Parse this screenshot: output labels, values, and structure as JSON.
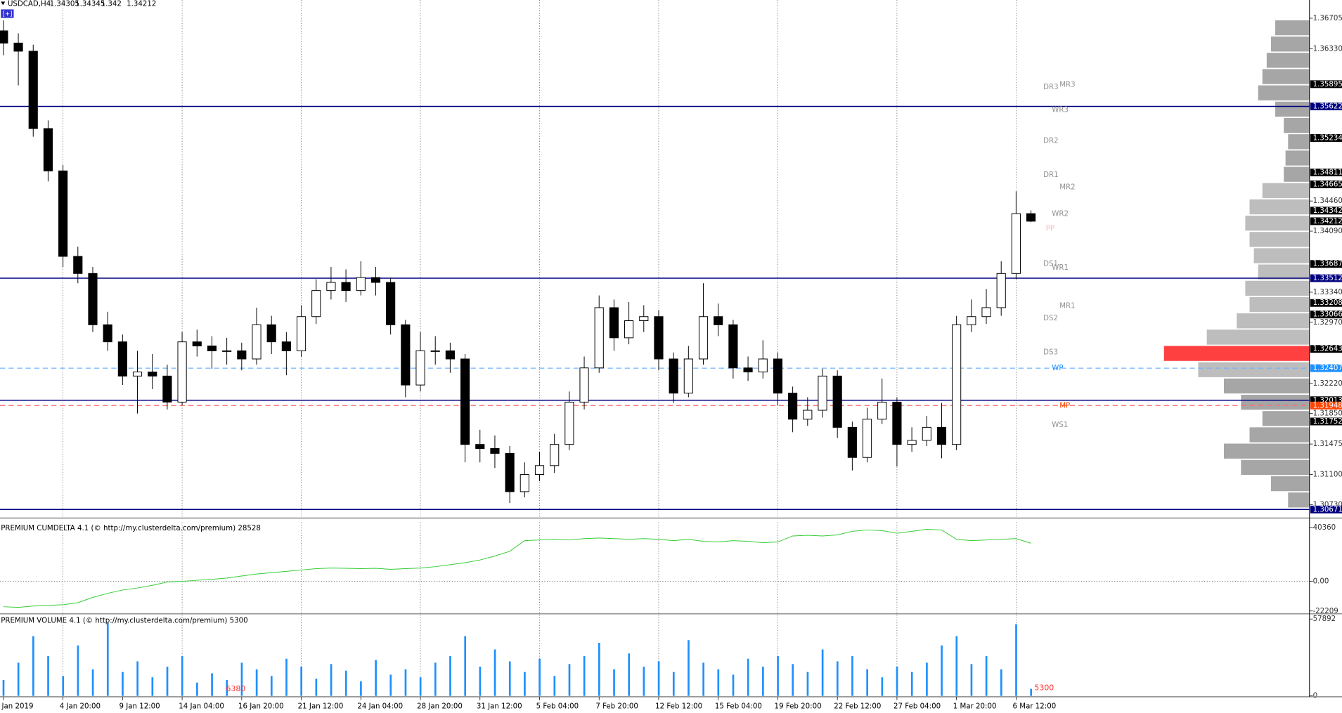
{
  "chart_data": [
    {
      "type": "candlestick",
      "title": "USDCAD,H4",
      "categories": [
        "2 Jan 2019",
        null,
        null,
        null,
        "4 Jan 20:00",
        null,
        null,
        null,
        "9 Jan 12:00",
        null,
        null,
        null,
        "14 Jan 04:00",
        null,
        null,
        null,
        "16 Jan 20:00",
        null,
        null,
        null,
        "21 Jan 12:00",
        null,
        null,
        null,
        "24 Jan 04:00",
        null,
        null,
        null,
        "28 Jan 20:00",
        null,
        null,
        null,
        "31 Jan 12:00",
        null,
        null,
        null,
        "5 Feb 04:00",
        null,
        null,
        null,
        "7 Feb 20:00",
        null,
        null,
        null,
        "12 Feb 12:00",
        null,
        null,
        null,
        "15 Feb 04:00",
        null,
        null,
        null,
        "19 Feb 20:00",
        null,
        null,
        null,
        "22 Feb 12:00",
        null,
        null,
        null,
        "27 Feb 04:00",
        null,
        null,
        null,
        "1 Mar 20:00",
        null,
        null,
        null,
        "6 Mar 12:00",
        null
      ],
      "open": [
        1.3655,
        1.364,
        1.363,
        1.3535,
        1.3483,
        1.3378,
        1.3357,
        1.3294,
        1.3273,
        1.3231,
        1.3236,
        1.3231,
        1.3199,
        1.3273,
        1.3268,
        1.3262,
        1.3262,
        1.3252,
        1.3294,
        1.3273,
        1.3262,
        1.3304,
        1.3336,
        1.3346,
        1.3336,
        1.3352,
        1.3346,
        1.3294,
        1.322,
        1.3262,
        1.3262,
        1.3252,
        1.3147,
        1.3142,
        1.3136,
        1.3089,
        1.311,
        1.3121,
        1.3147,
        1.3199,
        1.3241,
        1.3315,
        1.3278,
        1.3299,
        1.3304,
        1.3252,
        1.321,
        1.3252,
        1.3304,
        1.3294,
        1.3241,
        1.3236,
        1.3252,
        1.321,
        1.3178,
        1.3189,
        1.3231,
        1.3168,
        1.3131,
        1.3178,
        1.3199,
        1.3147,
        1.3152,
        1.3168,
        1.3147,
        1.3294,
        1.3304,
        1.3315,
        1.3357,
        1.34305
      ],
      "high": [
        1.3668,
        1.3652,
        1.3638,
        1.3545,
        1.349,
        1.339,
        1.3365,
        1.331,
        1.3282,
        1.3262,
        1.3258,
        1.3245,
        1.3285,
        1.3288,
        1.328,
        1.3278,
        1.3272,
        1.3315,
        1.3305,
        1.3285,
        1.3318,
        1.335,
        1.3365,
        1.3362,
        1.3372,
        1.3365,
        1.3352,
        1.33,
        1.3285,
        1.328,
        1.3272,
        1.3258,
        1.3165,
        1.3158,
        1.3145,
        1.3125,
        1.3138,
        1.316,
        1.3212,
        1.3255,
        1.333,
        1.3325,
        1.3322,
        1.3318,
        1.3312,
        1.326,
        1.3268,
        1.3345,
        1.332,
        1.33,
        1.3255,
        1.3275,
        1.326,
        1.3218,
        1.3205,
        1.324,
        1.3238,
        1.3175,
        1.3192,
        1.3228,
        1.3205,
        1.3168,
        1.3182,
        1.3198,
        1.3305,
        1.3325,
        1.3338,
        1.3372,
        1.3458,
        1.34345
      ],
      "low": [
        1.3625,
        1.3588,
        1.3525,
        1.347,
        1.3365,
        1.3345,
        1.3285,
        1.3262,
        1.322,
        1.3185,
        1.3215,
        1.319,
        1.3195,
        1.3255,
        1.324,
        1.3245,
        1.3238,
        1.3245,
        1.3258,
        1.3232,
        1.3255,
        1.3295,
        1.3325,
        1.3322,
        1.333,
        1.333,
        1.3282,
        1.3205,
        1.3212,
        1.3245,
        1.3235,
        1.3125,
        1.3125,
        1.3118,
        1.3075,
        1.3082,
        1.3102,
        1.3112,
        1.314,
        1.319,
        1.3235,
        1.3262,
        1.327,
        1.3285,
        1.3238,
        1.3198,
        1.3205,
        1.3245,
        1.328,
        1.3228,
        1.3225,
        1.3228,
        1.3195,
        1.3162,
        1.317,
        1.318,
        1.3155,
        1.3115,
        1.3125,
        1.3172,
        1.312,
        1.3138,
        1.3145,
        1.313,
        1.314,
        1.3285,
        1.3295,
        1.3305,
        1.335,
        1.342
      ],
      "close": [
        1.364,
        1.363,
        1.3535,
        1.3483,
        1.3378,
        1.3357,
        1.3294,
        1.3273,
        1.3231,
        1.3236,
        1.3231,
        1.3199,
        1.3273,
        1.3268,
        1.3262,
        1.3262,
        1.3252,
        1.3294,
        1.3273,
        1.3262,
        1.3304,
        1.3336,
        1.3346,
        1.3336,
        1.3352,
        1.3346,
        1.3294,
        1.322,
        1.3262,
        1.3262,
        1.3252,
        1.3147,
        1.3142,
        1.3136,
        1.3089,
        1.311,
        1.3121,
        1.3147,
        1.3199,
        1.3241,
        1.3315,
        1.3278,
        1.3299,
        1.3304,
        1.3252,
        1.321,
        1.3252,
        1.3304,
        1.3294,
        1.3241,
        1.3236,
        1.3252,
        1.321,
        1.3178,
        1.3189,
        1.3231,
        1.3168,
        1.3131,
        1.3178,
        1.3199,
        1.3147,
        1.3152,
        1.3168,
        1.3147,
        1.3294,
        1.3304,
        1.3315,
        1.3357,
        1.34305,
        1.34212
      ],
      "ylim": [
        1.30576,
        1.36929
      ],
      "yticks": [
        {
          "value": 1.36705,
          "label": "1.36705"
        },
        {
          "value": 1.3633,
          "label": "1.36330"
        },
        {
          "value": 1.3446,
          "label": "1.34460"
        },
        {
          "value": 1.3409,
          "label": "1.34090"
        },
        {
          "value": 1.3334,
          "label": "1.33340"
        },
        {
          "value": 1.3297,
          "label": "1.32970"
        },
        {
          "value": 1.3222,
          "label": "1.32220"
        },
        {
          "value": 1.3185,
          "label": "1.31850"
        },
        {
          "value": 1.31475,
          "label": "1.31475"
        },
        {
          "value": 1.311,
          "label": "1.31100"
        },
        {
          "value": 1.3073,
          "label": "1.30730"
        }
      ],
      "levels": {
        "values": [
          1.35622,
          1.33512,
          1.32013,
          1.30671,
          1.32407,
          1.31948
        ],
        "colors": [
          "#000080",
          "#000080",
          "#000080",
          "#000080",
          "#6cb4ff",
          "#ff6a6a"
        ],
        "dashed": [
          false,
          false,
          false,
          false,
          true,
          true
        ]
      },
      "price_labels": {
        "values": [
          1.35895,
          1.35622,
          1.35234,
          1.34811,
          1.34665,
          1.34342,
          1.34212,
          1.33687,
          1.33512,
          1.33208,
          1.33066,
          1.32643,
          1.32407,
          1.32013,
          1.31948,
          1.31752,
          1.30671
        ],
        "value_labels": [
          "1.35895",
          "1.35622",
          "1.35234",
          "1.34811",
          "1.34665",
          "1.34342",
          "1.34212",
          "1.33687",
          "1.33512",
          "1.33208",
          "1.33066",
          "1.32643",
          "1.32407",
          "1.32013",
          "1.31948",
          "1.31752",
          "1.30671"
        ],
        "colors": [
          "#000",
          "#000080",
          "#000",
          "#000",
          "#000",
          "#000",
          "#000",
          "#000",
          "#000080",
          "#000",
          "#000",
          "#000",
          "#1e90ff",
          "#000",
          "#ff4500",
          "#000",
          "#000080"
        ]
      },
      "pivots": {
        "names": [
          "DR3",
          "MR3",
          "WR3",
          "DR2",
          "DR1",
          "MR2",
          "WR2",
          "PP",
          "DS1",
          "WR1",
          "MR1",
          "DS2",
          "DS3",
          "WP",
          "MP",
          "WS1"
        ],
        "values": [
          1.3586,
          1.3589,
          1.3558,
          1.352,
          1.3478,
          1.3463,
          1.343,
          1.3412,
          1.3369,
          1.3364,
          1.3317,
          1.3302,
          1.326,
          1.32407,
          1.31948,
          1.3171
        ],
        "colors": [
          "#909090",
          "#909090",
          "#909090",
          "#909090",
          "#909090",
          "#909090",
          "#909090",
          "#ffb6c1",
          "#909090",
          "#909090",
          "#909090",
          "#909090",
          "#909090",
          "#1e90ff",
          "#ff4500",
          "#909090"
        ]
      },
      "profile": {
        "prices": [
          1.3078,
          1.3098,
          1.3118,
          1.3138,
          1.3158,
          1.3178,
          1.3198,
          1.3218,
          1.3238,
          1.3258,
          1.3278,
          1.3298,
          1.3318,
          1.3338,
          1.3358,
          1.3378,
          1.3398,
          1.3418,
          1.3438,
          1.3458,
          1.3478,
          1.3498,
          1.3518,
          1.3538,
          1.3558,
          1.3578,
          1.3598,
          1.3618,
          1.3638,
          1.3658
        ],
        "values": [
          25,
          45,
          80,
          100,
          70,
          55,
          80,
          100,
          130,
          170,
          120,
          85,
          70,
          75,
          60,
          65,
          70,
          75,
          70,
          55,
          30,
          28,
          25,
          30,
          40,
          60,
          55,
          50,
          45,
          40
        ],
        "xlim": [
          0,
          200
        ],
        "colors": [
          "#a6a6a6",
          "#a6a6a6",
          "#a6a6a6",
          "#a6a6a6",
          "#a6a6a6",
          "#a6a6a6",
          "#a6a6a6",
          "#a6a6a6",
          "#bdbdbd",
          "#ff4040",
          "#bdbdbd",
          "#bdbdbd",
          "#bdbdbd",
          "#bdbdbd",
          "#bdbdbd",
          "#bdbdbd",
          "#bdbdbd",
          "#bdbdbd",
          "#bdbdbd",
          "#bdbdbd",
          "#a6a6a6",
          "#a6a6a6",
          "#a6a6a6",
          "#a6a6a6",
          "#a6a6a6",
          "#a6a6a6",
          "#a6a6a6",
          "#a6a6a6",
          "#a6a6a6",
          "#a6a6a6"
        ]
      },
      "grid": true
    },
    {
      "type": "line",
      "title": "PREMIUM CUMDELTA 4.1 (© http://my.clusterdelta.com/premium) 28528",
      "color": "#33cc33",
      "values": [
        -19000,
        -19500,
        -18500,
        -18000,
        -17500,
        -16000,
        -12000,
        -9000,
        -6500,
        -5000,
        -3000,
        -500,
        0,
        800,
        1500,
        2500,
        4000,
        5500,
        6500,
        7500,
        8500,
        9500,
        10000,
        9800,
        9500,
        9800,
        9000,
        9500,
        10000,
        11000,
        12500,
        14000,
        16000,
        19000,
        22500,
        30500,
        31000,
        31500,
        31000,
        32000,
        32500,
        32000,
        31500,
        32000,
        31500,
        30500,
        31500,
        30000,
        29500,
        30500,
        30000,
        29000,
        29500,
        34000,
        34500,
        34000,
        34800,
        37500,
        38500,
        38000,
        36000,
        37500,
        39000,
        38500,
        31500,
        30500,
        31000,
        31500,
        32000,
        28528
      ],
      "ylim": [
        -23700,
        44200
      ],
      "yticks": [
        40360,
        {
          "value": 0,
          "label": "0.00"
        },
        -22209
      ]
    },
    {
      "type": "bar",
      "title": "PREMIUM VOLUME 4.1 (© http://my.clusterdelta.com/premium) 5300",
      "color": "#1e90ff",
      "note": 6380,
      "values": [
        12000,
        25000,
        45000,
        30000,
        15000,
        38000,
        20000,
        55000,
        18000,
        26000,
        14000,
        22000,
        30000,
        10000,
        17000,
        12000,
        25000,
        20000,
        15000,
        28000,
        22000,
        13000,
        24000,
        19000,
        11000,
        27000,
        16000,
        20000,
        14000,
        25000,
        30000,
        45000,
        22000,
        35000,
        26000,
        18000,
        28000,
        15000,
        24000,
        30000,
        40000,
        20000,
        32000,
        22000,
        26000,
        18000,
        42000,
        25000,
        20000,
        16000,
        28000,
        22000,
        30000,
        24000,
        18000,
        35000,
        26000,
        30000,
        20000,
        14000,
        22000,
        18000,
        25000,
        38000,
        45000,
        24000,
        30000,
        20000,
        54000,
        5300
      ],
      "ylim": [
        0,
        61150
      ],
      "yticks": [
        57892,
        0
      ]
    }
  ]
}
